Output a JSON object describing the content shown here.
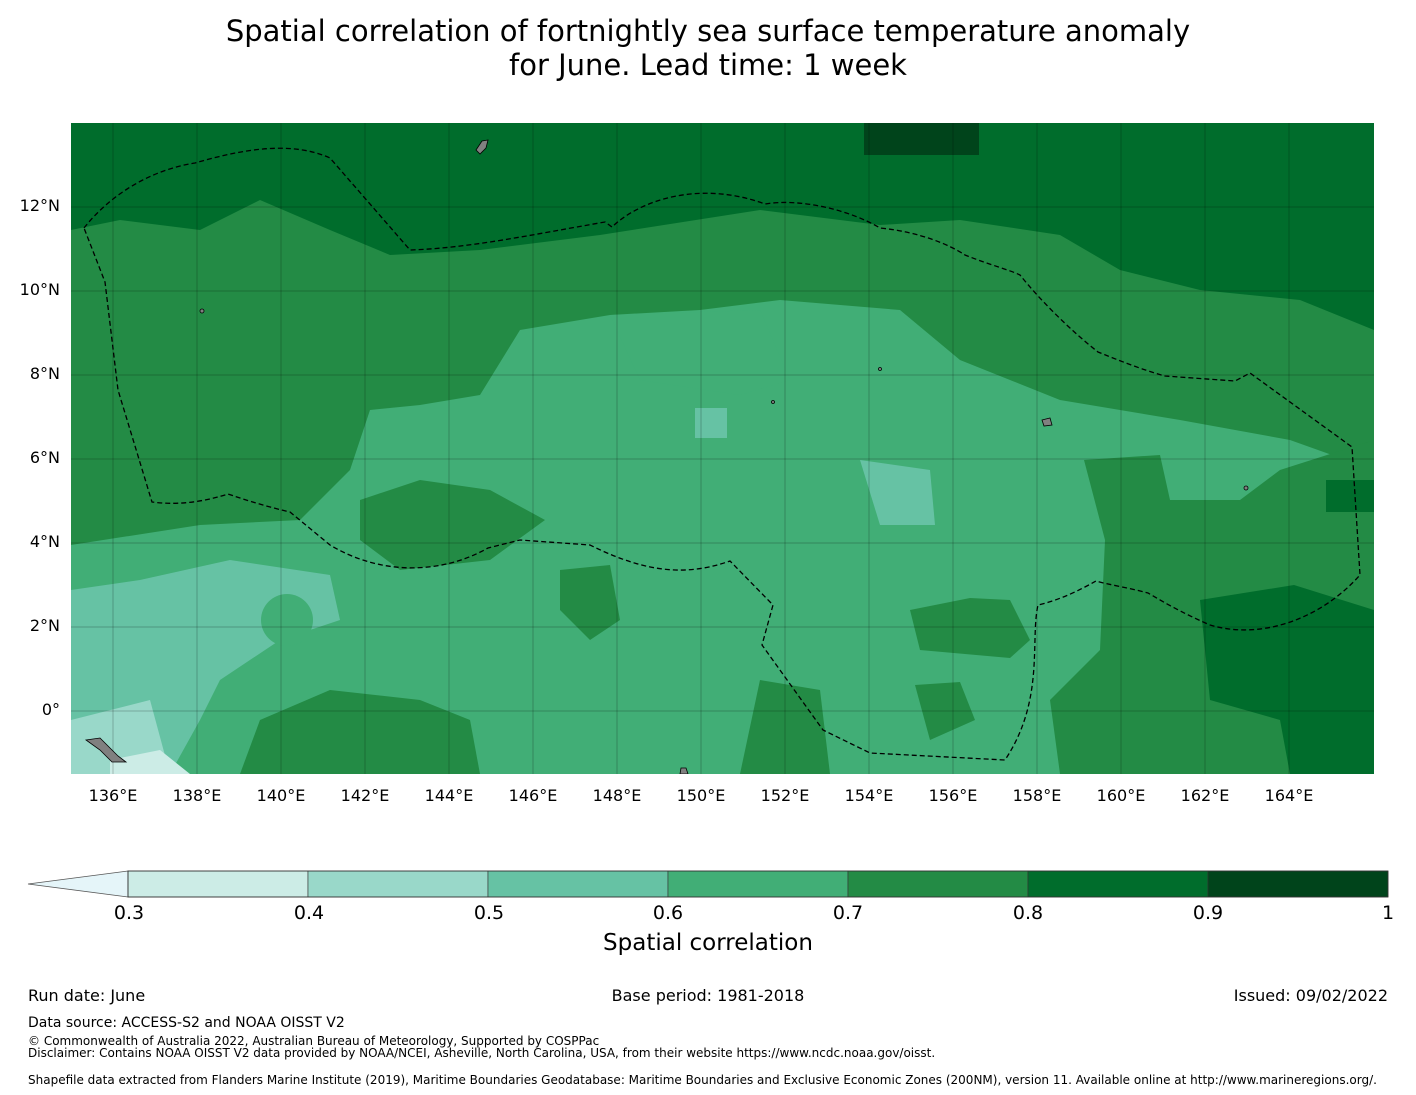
{
  "title": {
    "line1": "Spatial correlation of fortnightly sea surface temperature anomaly",
    "line2": "for June. Lead time: 1 week"
  },
  "map": {
    "latitude_labels": [
      "12°N",
      "10°N",
      "8°N",
      "6°N",
      "4°N",
      "2°N",
      "0°"
    ],
    "longitude_labels": [
      "136°E",
      "138°E",
      "140°E",
      "142°E",
      "144°E",
      "146°E",
      "148°E",
      "150°E",
      "152°E",
      "154°E",
      "156°E",
      "158°E",
      "160°E",
      "162°E",
      "164°E"
    ],
    "extent": {
      "lon_min": 135.0,
      "lon_max": 166.0,
      "lat_min": -1.5,
      "lat_max": 14.0
    },
    "region_correlation": [
      {
        "area": "north (above ~10.5°N)",
        "value_range": "0.8-0.9"
      },
      {
        "area": "central band",
        "value_range": "0.6-0.7"
      },
      {
        "area": "south-west corner",
        "value_range": "0.4-0.6"
      },
      {
        "area": "south-east corner",
        "value_range": "0.8-0.9"
      }
    ],
    "land_color": "#808080",
    "boundary_style": "dashed black line (EEZ)"
  },
  "colorbar": {
    "label": "Spatial correlation",
    "ticks": [
      "0.3",
      "0.4",
      "0.5",
      "0.6",
      "0.7",
      "0.8",
      "0.9",
      "1"
    ],
    "colors": [
      "#ccece6",
      "#99d8c9",
      "#66c2a4",
      "#41ae76",
      "#238b45",
      "#006d2c",
      "#00441b"
    ],
    "under_color": "#e5f5f9"
  },
  "footer": {
    "run_date": "Run date: June",
    "base_period": "Base period: 1981-2018",
    "issued": "Issued: 09/02/2022",
    "data_source": "Data source: ACCESS-S2 and NOAA OISST V2",
    "copyright": "© Commonwealth of Australia 2022, Australian Bureau of Meteorology, Supported by COSPPac",
    "disclaimer": "Disclaimer: Contains NOAA OISST V2 data provided by NOAA/NCEI, Asheville, North Carolina, USA, from their website https://www.ncdc.noaa.gov/oisst.",
    "shapefile": "Shapefile data extracted from Flanders Marine Institute (2019), Maritime Boundaries Geodatabase: Maritime Boundaries and Exclusive Economic Zones (200NM), version 11. Available online at http://www.marineregions.org/."
  }
}
